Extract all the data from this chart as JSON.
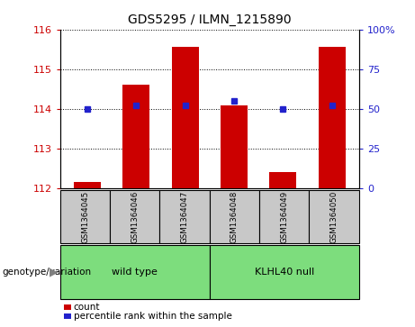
{
  "title": "GDS5295 / ILMN_1215890",
  "samples": [
    "GSM1364045",
    "GSM1364046",
    "GSM1364047",
    "GSM1364048",
    "GSM1364049",
    "GSM1364050"
  ],
  "counts": [
    112.15,
    114.6,
    115.55,
    114.08,
    112.4,
    115.55
  ],
  "percentiles": [
    50,
    52,
    52,
    55,
    50,
    52
  ],
  "baseline": 112,
  "ylim_left": [
    112,
    116
  ],
  "ylim_right": [
    0,
    100
  ],
  "left_ticks": [
    112,
    113,
    114,
    115,
    116
  ],
  "right_ticks": [
    0,
    25,
    50,
    75,
    100
  ],
  "right_tick_labels": [
    "0",
    "25",
    "50",
    "75",
    "100%"
  ],
  "bar_color": "#cc0000",
  "marker_color": "#2222cc",
  "bar_width": 0.55,
  "groups": [
    {
      "label": "wild type",
      "samples": [
        0,
        1,
        2
      ],
      "color": "#7ddd7d"
    },
    {
      "label": "KLHL40 null",
      "samples": [
        3,
        4,
        5
      ],
      "color": "#7ddd7d"
    }
  ],
  "genotype_label": "genotype/variation",
  "legend_count_label": "count",
  "legend_percentile_label": "percentile rank within the sample",
  "tick_color_left": "#cc0000",
  "tick_color_right": "#2222cc",
  "sample_box_color": "#c8c8c8"
}
